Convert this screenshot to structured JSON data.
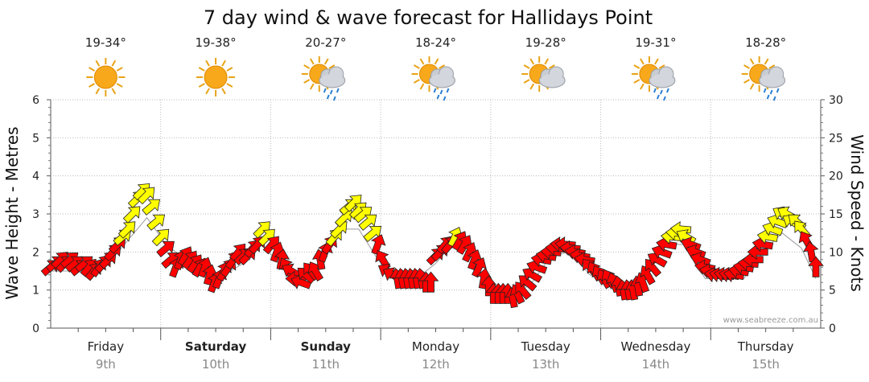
{
  "chart_data": {
    "type": "line",
    "title": "7 day wind & wave forecast for Hallidays Point",
    "ylabel_left": "Wave Height - Metres",
    "ylabel_right": "Wind Speed - Knots",
    "ylim_left": [
      0,
      6
    ],
    "ylim_right": [
      0,
      30
    ],
    "yticks_left": [
      "0",
      "1",
      "2",
      "3",
      "4",
      "5",
      "6"
    ],
    "yticks_right": [
      "0",
      "5",
      "10",
      "15",
      "20",
      "25",
      "30"
    ],
    "grid": true,
    "credit": "www.seabreeze.com.au",
    "colors": {
      "strong": "#ff0000",
      "light": "#ffff00",
      "stroke": "#222222"
    },
    "days": [
      {
        "name": "Friday",
        "date": "9th",
        "bold": false,
        "temp": "19-34°",
        "icon": "sun-icon"
      },
      {
        "name": "Saturday",
        "date": "10th",
        "bold": true,
        "temp": "19-38°",
        "icon": "sun-icon"
      },
      {
        "name": "Sunday",
        "date": "11th",
        "bold": true,
        "temp": "20-27°",
        "icon": "sun-cloud-rain-icon"
      },
      {
        "name": "Monday",
        "date": "12th",
        "bold": false,
        "temp": "18-24°",
        "icon": "sun-cloud-rain-icon"
      },
      {
        "name": "Tuesday",
        "date": "13th",
        "bold": false,
        "temp": "19-28°",
        "icon": "sun-cloud-icon"
      },
      {
        "name": "Wednesday",
        "date": "14th",
        "bold": false,
        "temp": "19-31°",
        "icon": "sun-cloud-rain-icon"
      },
      {
        "name": "Thursday",
        "date": "15th",
        "bold": false,
        "temp": "18-28°",
        "icon": "sun-cloud-rain-icon"
      }
    ],
    "series": [
      {
        "name": "Wind Speed",
        "unit": "knots",
        "x_unit": "hours from start",
        "points": [
          {
            "t": 0,
            "v": 8,
            "dir": 230
          },
          {
            "t": 1.5,
            "v": 8.5,
            "dir": 230
          },
          {
            "t": 3,
            "v": 9,
            "dir": 225
          },
          {
            "t": 4.5,
            "v": 8.5,
            "dir": 225
          },
          {
            "t": 6,
            "v": 9,
            "dir": 230
          },
          {
            "t": 7.5,
            "v": 8.5,
            "dir": 230
          },
          {
            "t": 9,
            "v": 8,
            "dir": 230
          },
          {
            "t": 10.5,
            "v": 8.5,
            "dir": 230
          },
          {
            "t": 12,
            "v": 8,
            "dir": 220
          },
          {
            "t": 13.5,
            "v": 7.5,
            "dir": 220
          },
          {
            "t": 15,
            "v": 8,
            "dir": 215
          },
          {
            "t": 16.5,
            "v": 8.5,
            "dir": 220
          },
          {
            "t": 18,
            "v": 9,
            "dir": 225
          },
          {
            "t": 19.5,
            "v": 10,
            "dir": 225
          },
          {
            "t": 21,
            "v": 11,
            "dir": 225
          },
          {
            "t": 22.5,
            "v": 12,
            "dir": 230
          },
          {
            "t": 24,
            "v": 13,
            "dir": 225
          },
          {
            "t": 25.5,
            "v": 15,
            "dir": 225
          },
          {
            "t": 27,
            "v": 17,
            "dir": 225
          },
          {
            "t": 28.5,
            "v": 18,
            "dir": 225
          },
          {
            "t": 30,
            "v": 17.5,
            "dir": 225
          },
          {
            "t": 31.5,
            "v": 16,
            "dir": 230
          },
          {
            "t": 33,
            "v": 14,
            "dir": 230
          },
          {
            "t": 34.5,
            "v": 12,
            "dir": 225
          },
          {
            "t": 36,
            "v": 10.5,
            "dir": 230
          },
          {
            "t": 37.5,
            "v": 9,
            "dir": 230
          },
          {
            "t": 39,
            "v": 8,
            "dir": 200
          },
          {
            "t": 40.5,
            "v": 9,
            "dir": 200
          },
          {
            "t": 42,
            "v": 9.5,
            "dir": 210
          },
          {
            "t": 43.5,
            "v": 9,
            "dir": 215
          },
          {
            "t": 45,
            "v": 8.5,
            "dir": 215
          },
          {
            "t": 46.5,
            "v": 8,
            "dir": 210
          },
          {
            "t": 48,
            "v": 8,
            "dir": 200
          },
          {
            "t": 49.5,
            "v": 7,
            "dir": 195
          },
          {
            "t": 51,
            "v": 6,
            "dir": 200
          },
          {
            "t": 52.5,
            "v": 6.5,
            "dir": 200
          },
          {
            "t": 54,
            "v": 7.5,
            "dir": 205
          },
          {
            "t": 55.5,
            "v": 8,
            "dir": 215
          },
          {
            "t": 57,
            "v": 9,
            "dir": 215
          },
          {
            "t": 58.5,
            "v": 10,
            "dir": 220
          },
          {
            "t": 60,
            "v": 9.5,
            "dir": 225
          },
          {
            "t": 61.5,
            "v": 9.5,
            "dir": 225
          },
          {
            "t": 63,
            "v": 10.5,
            "dir": 220
          },
          {
            "t": 64.5,
            "v": 11,
            "dir": 220
          },
          {
            "t": 66,
            "v": 13,
            "dir": 225
          },
          {
            "t": 67.5,
            "v": 12,
            "dir": 225
          },
          {
            "t": 69,
            "v": 11,
            "dir": 220
          },
          {
            "t": 70.5,
            "v": 10,
            "dir": 200
          },
          {
            "t": 72,
            "v": 9,
            "dir": 190
          },
          {
            "t": 73.5,
            "v": 8,
            "dir": 150
          },
          {
            "t": 75,
            "v": 7.5,
            "dir": 120
          },
          {
            "t": 76.5,
            "v": 6.5,
            "dir": 90
          },
          {
            "t": 78,
            "v": 6,
            "dir": 110
          },
          {
            "t": 79.5,
            "v": 7,
            "dir": 130
          },
          {
            "t": 81,
            "v": 7.5,
            "dir": 140
          },
          {
            "t": 82.5,
            "v": 7.5,
            "dir": 150
          },
          {
            "t": 84,
            "v": 9,
            "dir": 170
          },
          {
            "t": 85.5,
            "v": 10,
            "dir": 200
          },
          {
            "t": 87,
            "v": 11,
            "dir": 215
          },
          {
            "t": 88.5,
            "v": 12,
            "dir": 220
          },
          {
            "t": 90,
            "v": 13,
            "dir": 225
          },
          {
            "t": 91.5,
            "v": 14.5,
            "dir": 225
          },
          {
            "t": 93,
            "v": 16,
            "dir": 230
          },
          {
            "t": 94.5,
            "v": 16.5,
            "dir": 225
          },
          {
            "t": 96,
            "v": 15.5,
            "dir": 225
          },
          {
            "t": 97.5,
            "v": 15,
            "dir": 230
          },
          {
            "t": 99,
            "v": 14,
            "dir": 230
          },
          {
            "t": 100.5,
            "v": 12.5,
            "dir": 230
          },
          {
            "t": 102,
            "v": 11,
            "dir": 200
          },
          {
            "t": 103.5,
            "v": 9,
            "dir": 150
          },
          {
            "t": 105,
            "v": 7.5,
            "dir": 120
          },
          {
            "t": 106.5,
            "v": 7,
            "dir": 120
          },
          {
            "t": 108,
            "v": 6.5,
            "dir": 170
          },
          {
            "t": 109.5,
            "v": 6.5,
            "dir": 170
          },
          {
            "t": 111,
            "v": 6.5,
            "dir": 170
          },
          {
            "t": 112.5,
            "v": 6.5,
            "dir": 170
          },
          {
            "t": 114,
            "v": 6.5,
            "dir": 170
          },
          {
            "t": 115.5,
            "v": 6.5,
            "dir": 170
          },
          {
            "t": 117,
            "v": 6,
            "dir": 180
          },
          {
            "t": 118.5,
            "v": 6,
            "dir": 180
          },
          {
            "t": 120,
            "v": 9.5,
            "dir": 225
          },
          {
            "t": 121.5,
            "v": 10,
            "dir": 225
          },
          {
            "t": 123,
            "v": 11,
            "dir": 220
          },
          {
            "t": 124.5,
            "v": 11,
            "dir": 220
          },
          {
            "t": 126,
            "v": 12,
            "dir": 205
          },
          {
            "t": 127.5,
            "v": 11.5,
            "dir": 210
          },
          {
            "t": 129,
            "v": 11,
            "dir": 210
          },
          {
            "t": 130.5,
            "v": 10,
            "dir": 205
          },
          {
            "t": 132,
            "v": 9,
            "dir": 200
          },
          {
            "t": 133.5,
            "v": 8,
            "dir": 205
          },
          {
            "t": 135,
            "v": 6.5,
            "dir": 190
          },
          {
            "t": 136.5,
            "v": 5.5,
            "dir": 180
          },
          {
            "t": 138,
            "v": 4.5,
            "dir": 180
          },
          {
            "t": 139.5,
            "v": 4.5,
            "dir": 180
          },
          {
            "t": 141,
            "v": 4.5,
            "dir": 180
          },
          {
            "t": 142.5,
            "v": 4.5,
            "dir": 180
          },
          {
            "t": 144,
            "v": 4,
            "dir": 170
          },
          {
            "t": 145.5,
            "v": 4.5,
            "dir": 155
          },
          {
            "t": 147,
            "v": 5,
            "dir": 140
          },
          {
            "t": 148.5,
            "v": 6,
            "dir": 130
          },
          {
            "t": 150,
            "v": 7,
            "dir": 120
          },
          {
            "t": 151.5,
            "v": 8,
            "dir": 110
          },
          {
            "t": 153,
            "v": 9,
            "dir": 100
          },
          {
            "t": 154.5,
            "v": 9.5,
            "dir": 100
          },
          {
            "t": 156,
            "v": 10,
            "dir": 95
          },
          {
            "t": 157.5,
            "v": 10.5,
            "dir": 95
          },
          {
            "t": 159,
            "v": 11,
            "dir": 95
          },
          {
            "t": 160.5,
            "v": 11,
            "dir": 95
          },
          {
            "t": 162,
            "v": 10.5,
            "dir": 95
          },
          {
            "t": 163.5,
            "v": 10,
            "dir": 100
          },
          {
            "t": 165,
            "v": 9.5,
            "dir": 100
          },
          {
            "t": 166.5,
            "v": 9,
            "dir": 100
          },
          {
            "t": 168,
            "v": 8,
            "dir": 140
          },
          {
            "t": 169.5,
            "v": 7.5,
            "dir": 150
          },
          {
            "t": 171,
            "v": 7,
            "dir": 150
          },
          {
            "t": 172.5,
            "v": 6.5,
            "dir": 150
          },
          {
            "t": 174,
            "v": 6.5,
            "dir": 150
          },
          {
            "t": 175.5,
            "v": 6,
            "dir": 160
          },
          {
            "t": 177,
            "v": 5.5,
            "dir": 170
          },
          {
            "t": 178.5,
            "v": 5,
            "dir": 170
          },
          {
            "t": 180,
            "v": 5,
            "dir": 170
          },
          {
            "t": 181.5,
            "v": 5,
            "dir": 170
          },
          {
            "t": 183,
            "v": 5.5,
            "dir": 170
          },
          {
            "t": 184.5,
            "v": 6,
            "dir": 160
          },
          {
            "t": 186,
            "v": 7,
            "dir": 150
          },
          {
            "t": 187.5,
            "v": 8,
            "dir": 140
          },
          {
            "t": 189,
            "v": 9,
            "dir": 120
          },
          {
            "t": 190.5,
            "v": 10,
            "dir": 110
          },
          {
            "t": 192,
            "v": 11,
            "dir": 100
          },
          {
            "t": 193.5,
            "v": 12,
            "dir": 95
          },
          {
            "t": 195,
            "v": 12.5,
            "dir": 95
          },
          {
            "t": 196.5,
            "v": 13,
            "dir": 95
          },
          {
            "t": 198,
            "v": 12,
            "dir": 120
          },
          {
            "t": 199.5,
            "v": 11,
            "dir": 110
          },
          {
            "t": 201,
            "v": 10,
            "dir": 110
          },
          {
            "t": 202.5,
            "v": 9,
            "dir": 110
          },
          {
            "t": 204,
            "v": 8,
            "dir": 100
          },
          {
            "t": 205.5,
            "v": 7.5,
            "dir": 100
          },
          {
            "t": 207,
            "v": 7,
            "dir": 100
          },
          {
            "t": 208.5,
            "v": 7,
            "dir": 100
          },
          {
            "t": 210,
            "v": 7,
            "dir": 100
          },
          {
            "t": 211.5,
            "v": 7,
            "dir": 100
          },
          {
            "t": 213,
            "v": 7,
            "dir": 100
          },
          {
            "t": 214.5,
            "v": 7.5,
            "dir": 100
          },
          {
            "t": 216,
            "v": 8,
            "dir": 100
          },
          {
            "t": 217.5,
            "v": 8.5,
            "dir": 95
          },
          {
            "t": 219,
            "v": 9,
            "dir": 90
          },
          {
            "t": 220.5,
            "v": 10,
            "dir": 90
          },
          {
            "t": 222,
            "v": 11,
            "dir": 100
          },
          {
            "t": 223.5,
            "v": 12,
            "dir": 100
          },
          {
            "t": 225,
            "v": 13,
            "dir": 110
          },
          {
            "t": 226.5,
            "v": 14,
            "dir": 110
          },
          {
            "t": 228,
            "v": 15,
            "dir": 120
          },
          {
            "t": 229.5,
            "v": 15,
            "dir": 120
          },
          {
            "t": 231,
            "v": 14,
            "dir": 120
          },
          {
            "t": 232.5,
            "v": 14,
            "dir": 130
          },
          {
            "t": 234,
            "v": 13,
            "dir": 140
          },
          {
            "t": 235.5,
            "v": 11.5,
            "dir": 150
          },
          {
            "t": 237,
            "v": 10,
            "dir": 170
          },
          {
            "t": 238.5,
            "v": 8,
            "dir": 180
          }
        ]
      },
      {
        "name": "Wave Height",
        "unit": "metres",
        "x_unit": "hours from start",
        "points": [
          {
            "t": 0,
            "v": 1.5
          },
          {
            "t": 6,
            "v": 1.5
          },
          {
            "t": 12,
            "v": 1.5
          },
          {
            "t": 18,
            "v": 1.7
          },
          {
            "t": 24,
            "v": 2.3
          },
          {
            "t": 30,
            "v": 2.9
          },
          {
            "t": 36,
            "v": 2.2
          },
          {
            "t": 42,
            "v": 1.8
          },
          {
            "t": 48,
            "v": 1.4
          },
          {
            "t": 54,
            "v": 1.4
          },
          {
            "t": 60,
            "v": 1.7
          },
          {
            "t": 66,
            "v": 2.2
          },
          {
            "t": 72,
            "v": 1.6
          },
          {
            "t": 78,
            "v": 1.3
          },
          {
            "t": 84,
            "v": 1.7
          },
          {
            "t": 90,
            "v": 2.6
          },
          {
            "t": 96,
            "v": 2.6
          },
          {
            "t": 102,
            "v": 1.8
          },
          {
            "t": 108,
            "v": 1.2
          },
          {
            "t": 114,
            "v": 1.3
          },
          {
            "t": 120,
            "v": 1.7
          },
          {
            "t": 126,
            "v": 2.3
          },
          {
            "t": 132,
            "v": 1.8
          },
          {
            "t": 138,
            "v": 0.8
          },
          {
            "t": 144,
            "v": 0.8
          },
          {
            "t": 150,
            "v": 1.2
          },
          {
            "t": 156,
            "v": 1.9
          },
          {
            "t": 162,
            "v": 2.0
          },
          {
            "t": 168,
            "v": 1.4
          },
          {
            "t": 174,
            "v": 1.2
          },
          {
            "t": 180,
            "v": 1.2
          },
          {
            "t": 186,
            "v": 1.5
          },
          {
            "t": 192,
            "v": 2.2
          },
          {
            "t": 198,
            "v": 2.2
          },
          {
            "t": 204,
            "v": 1.3
          },
          {
            "t": 210,
            "v": 1.3
          },
          {
            "t": 216,
            "v": 1.3
          },
          {
            "t": 222,
            "v": 2.0
          },
          {
            "t": 228,
            "v": 2.5
          },
          {
            "t": 234,
            "v": 2.1
          },
          {
            "t": 238.5,
            "v": 1.3
          }
        ]
      }
    ]
  }
}
